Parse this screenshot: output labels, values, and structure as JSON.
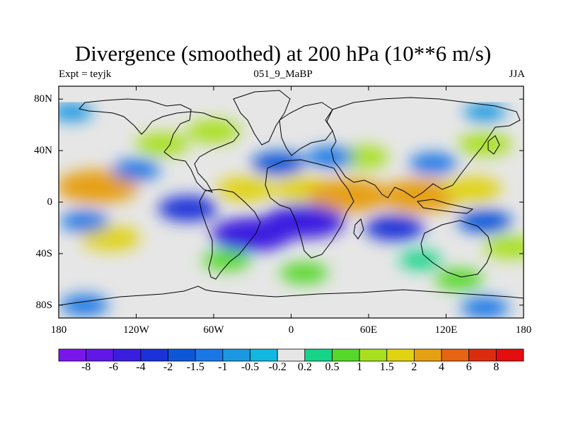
{
  "title": "Divergence (smoothed) at 200 hPa (10**6 m/s)",
  "subtitle_left": "Expt = teyjk",
  "subtitle_center": "051_9_MaBP",
  "subtitle_right": "JJA",
  "lat_ticks": [
    {
      "value": 80,
      "label": "80N"
    },
    {
      "value": 40,
      "label": "40N"
    },
    {
      "value": 0,
      "label": "0"
    },
    {
      "value": -40,
      "label": "40S"
    },
    {
      "value": -80,
      "label": "80S"
    }
  ],
  "lon_ticks": [
    {
      "value": -180,
      "label": "180"
    },
    {
      "value": -120,
      "label": "120W"
    },
    {
      "value": -60,
      "label": "60W"
    },
    {
      "value": 0,
      "label": "0"
    },
    {
      "value": 60,
      "label": "60E"
    },
    {
      "value": 120,
      "label": "120E"
    },
    {
      "value": 180,
      "label": "180"
    }
  ],
  "colorbar": {
    "colors": [
      "#7b16ea",
      "#6118e6",
      "#3a1ee0",
      "#1a32d8",
      "#0d56d8",
      "#1a78e6",
      "#1c98e2",
      "#12b8e0",
      "#e6e6e6",
      "#16d488",
      "#56d82a",
      "#a8e020",
      "#e0d312",
      "#e6a014",
      "#e66412",
      "#dc2c10",
      "#e40e0e"
    ],
    "labels": [
      "-8",
      "-6",
      "-4",
      "-2",
      "-1.5",
      "-1",
      "-0.5",
      "-0.2",
      "0.2",
      "0.5",
      "1",
      "1.5",
      "2",
      "4",
      "6",
      "8"
    ]
  },
  "chart_data": {
    "type": "heatmap",
    "title": "Divergence (smoothed) at 200 hPa (10**6 m/s)",
    "variable": "Divergence (smoothed)",
    "level": "200 hPa",
    "units": "10**6 m/s",
    "experiment": "teyjk",
    "period": "051_9_MaBP",
    "season": "JJA",
    "xlim": [
      -180,
      180
    ],
    "ylim": [
      -90,
      90
    ],
    "contour_levels": [
      -8,
      -6,
      -4,
      -2,
      -1.5,
      -1,
      -0.5,
      -0.2,
      0.2,
      0.5,
      1,
      1.5,
      2,
      4,
      6,
      8
    ],
    "features": [
      {
        "lon": -150,
        "lat": 12,
        "value": 4
      },
      {
        "lon": -60,
        "lat": 55,
        "value": 1.5
      },
      {
        "lon": -100,
        "lat": 45,
        "value": 1.5
      },
      {
        "lon": -35,
        "lat": 10,
        "value": 2
      },
      {
        "lon": 10,
        "lat": 10,
        "value": 2
      },
      {
        "lon": 45,
        "lat": 5,
        "value": 4
      },
      {
        "lon": 100,
        "lat": 5,
        "value": 4
      },
      {
        "lon": 140,
        "lat": 10,
        "value": 2
      },
      {
        "lon": 55,
        "lat": 35,
        "value": 1.5
      },
      {
        "lon": 150,
        "lat": 45,
        "value": 1.5
      },
      {
        "lon": -140,
        "lat": -28,
        "value": 2
      },
      {
        "lon": 170,
        "lat": -35,
        "value": 1.5
      },
      {
        "lon": -30,
        "lat": -25,
        "value": -4
      },
      {
        "lon": 10,
        "lat": -15,
        "value": -4
      },
      {
        "lon": -80,
        "lat": -5,
        "value": -2
      },
      {
        "lon": 80,
        "lat": -20,
        "value": -2
      },
      {
        "lon": -10,
        "lat": 30,
        "value": -1.5
      },
      {
        "lon": 30,
        "lat": 35,
        "value": -1
      },
      {
        "lon": -120,
        "lat": 25,
        "value": -1
      },
      {
        "lon": 110,
        "lat": 30,
        "value": -1
      },
      {
        "lon": -160,
        "lat": -15,
        "value": -1
      },
      {
        "lon": 150,
        "lat": -15,
        "value": -1.5
      },
      {
        "lon": -170,
        "lat": 70,
        "value": -0.5
      },
      {
        "lon": 150,
        "lat": 70,
        "value": -0.5
      },
      {
        "lon": 10,
        "lat": -55,
        "value": 1
      },
      {
        "lon": 130,
        "lat": -60,
        "value": 1
      },
      {
        "lon": -50,
        "lat": -45,
        "value": 1
      },
      {
        "lon": 100,
        "lat": -45,
        "value": 0.5
      },
      {
        "lon": -160,
        "lat": -80,
        "value": -1
      },
      {
        "lon": 150,
        "lat": -82,
        "value": -1
      }
    ]
  }
}
